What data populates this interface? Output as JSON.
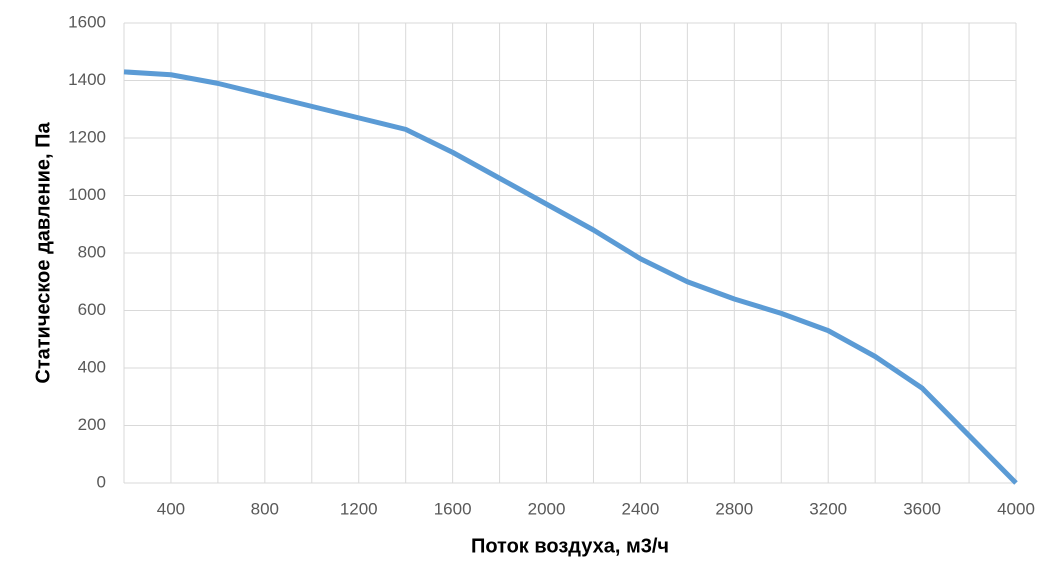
{
  "chart_data": {
    "type": "line",
    "x_label": "Поток воздуха, м3/ч",
    "y_label": "Статическое давление, Па",
    "x": [
      200,
      400,
      600,
      800,
      1000,
      1200,
      1400,
      1600,
      1800,
      2000,
      2200,
      2400,
      2600,
      2800,
      3000,
      3200,
      3400,
      3600,
      3800,
      4000
    ],
    "series": [
      {
        "color": "#5b9bd5",
        "values": [
          1430,
          1420,
          1390,
          1350,
          1310,
          1270,
          1230,
          1150,
          1060,
          970,
          880,
          780,
          700,
          640,
          590,
          530,
          440,
          330,
          165,
          0
        ]
      }
    ],
    "xlim": [
      200,
      4000
    ],
    "xticks": [
      400,
      800,
      1200,
      1600,
      2000,
      2400,
      2800,
      3200,
      3600,
      4000
    ],
    "x_minor_ticks": [
      600,
      1000,
      1400,
      1800,
      2200,
      2600,
      3000,
      3400,
      3800
    ],
    "ylim": [
      0,
      1600
    ],
    "yticks": [
      0,
      200,
      400,
      600,
      800,
      1000,
      1200,
      1400,
      1600
    ],
    "grid": true
  }
}
